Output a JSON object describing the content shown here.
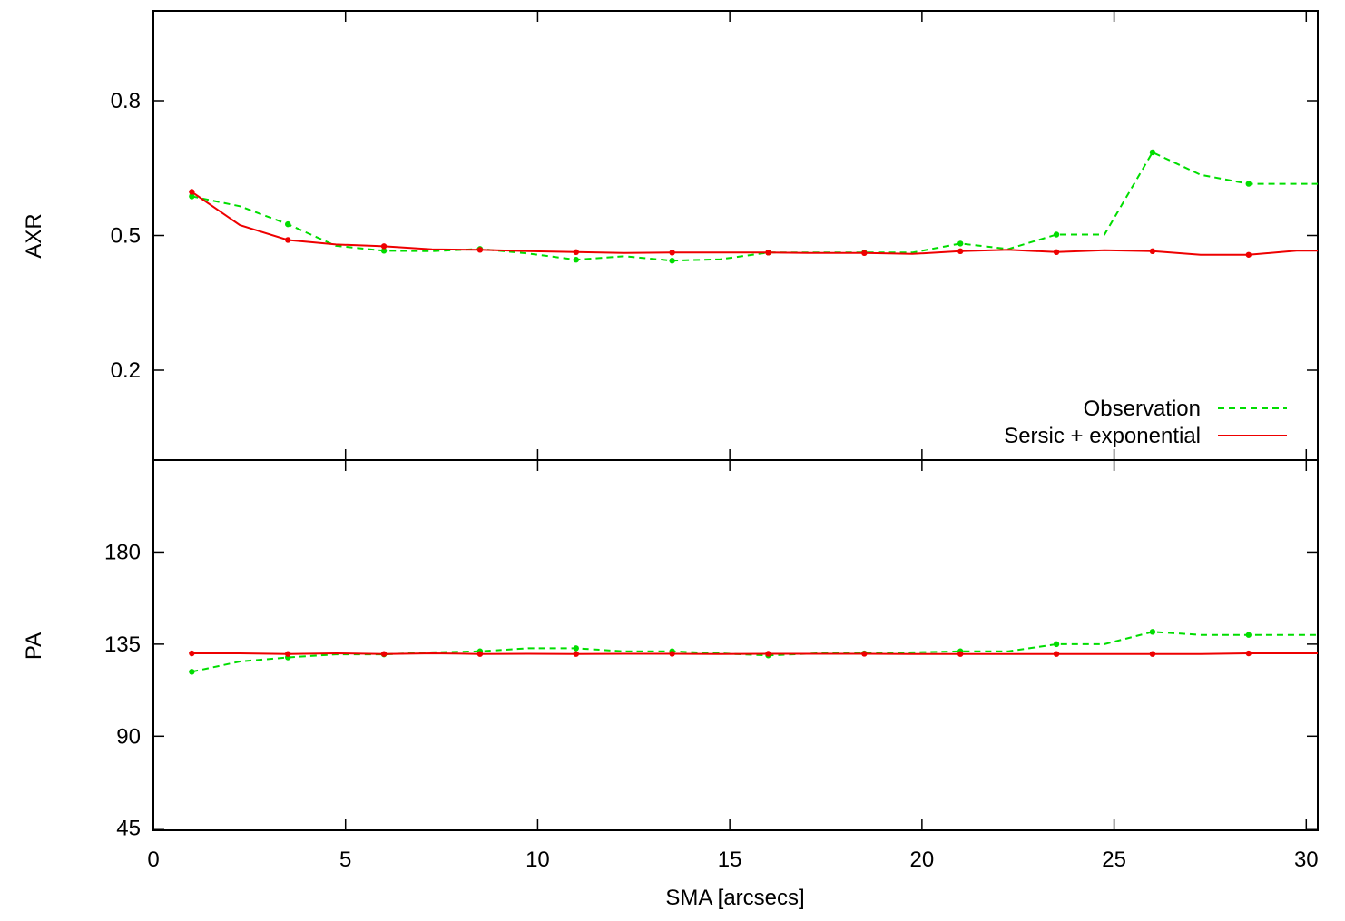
{
  "chart_data": [
    {
      "type": "line",
      "ylabel": "AXR",
      "ylim": [
        0.0,
        1.0
      ],
      "yticks": [
        0.2,
        0.5,
        0.8
      ],
      "ytick_labels": [
        "0.2",
        "0.5",
        "0.8"
      ],
      "xlim": [
        0,
        30
      ],
      "legend": {
        "placement": "bottom-right",
        "entries": [
          "Observation",
          "Sersic + exponential"
        ]
      },
      "series": [
        {
          "name": "Observation",
          "color": "#00dd00",
          "style": "dashed",
          "x": [
            1.0,
            2.25,
            3.5,
            4.75,
            6.0,
            7.25,
            8.5,
            9.75,
            11.0,
            12.25,
            13.5,
            14.75,
            16.0,
            17.25,
            18.5,
            19.75,
            21.0,
            22.25,
            23.5,
            24.75,
            26.0,
            27.25,
            28.5,
            29.75,
            30.3
          ],
          "y": [
            0.587,
            0.565,
            0.525,
            0.477,
            0.466,
            0.465,
            0.47,
            0.46,
            0.446,
            0.454,
            0.444,
            0.447,
            0.462,
            0.462,
            0.462,
            0.462,
            0.482,
            0.47,
            0.502,
            0.502,
            0.685,
            0.635,
            0.615,
            0.615,
            0.615
          ]
        },
        {
          "name": "Sersic + exponential",
          "color": "#ee0000",
          "style": "solid",
          "x": [
            1.0,
            2.25,
            3.5,
            4.75,
            6.0,
            7.25,
            8.5,
            9.75,
            11.0,
            12.25,
            13.5,
            14.75,
            16.0,
            17.25,
            18.5,
            19.75,
            21.0,
            22.25,
            23.5,
            24.75,
            26.0,
            27.25,
            28.5,
            29.75,
            30.3
          ],
          "y": [
            0.597,
            0.523,
            0.49,
            0.48,
            0.476,
            0.469,
            0.468,
            0.465,
            0.463,
            0.461,
            0.462,
            0.462,
            0.462,
            0.461,
            0.461,
            0.459,
            0.465,
            0.468,
            0.463,
            0.467,
            0.465,
            0.457,
            0.457,
            0.466,
            0.466
          ]
        }
      ]
    },
    {
      "type": "line",
      "ylabel": "PA",
      "ylim": [
        44,
        225
      ],
      "yticks": [
        45,
        90,
        135,
        180
      ],
      "ytick_labels": [
        "45",
        "90",
        "135",
        "180"
      ],
      "xlim": [
        0,
        30
      ],
      "xlabel": "SMA [arcsecs]",
      "xticks": [
        0,
        5,
        10,
        15,
        20,
        25,
        30
      ],
      "xtick_labels": [
        "0",
        "5",
        "10",
        "15",
        "20",
        "25",
        "30"
      ],
      "series": [
        {
          "name": "Observation",
          "color": "#00dd00",
          "style": "dashed",
          "x": [
            1.0,
            2.25,
            3.5,
            4.75,
            6.0,
            7.25,
            8.5,
            9.75,
            11.0,
            12.25,
            13.5,
            14.75,
            16.0,
            17.25,
            18.5,
            19.75,
            21.0,
            22.25,
            23.5,
            24.75,
            26.0,
            27.25,
            28.5,
            29.75,
            30.3
          ],
          "y": [
            121.5,
            126.5,
            128.5,
            130,
            130,
            131,
            131.5,
            133,
            133,
            131.5,
            131.5,
            130.5,
            129.5,
            130.5,
            130.5,
            131,
            131.5,
            131.5,
            135,
            135,
            141,
            139.5,
            139.5,
            139.5,
            139.5
          ]
        },
        {
          "name": "Sersic + exponential",
          "color": "#ee0000",
          "style": "solid",
          "x": [
            1.0,
            2.25,
            3.5,
            4.75,
            6.0,
            7.25,
            8.5,
            9.75,
            11.0,
            12.25,
            13.5,
            14.75,
            16.0,
            17.25,
            18.5,
            19.75,
            21.0,
            22.25,
            23.5,
            24.75,
            26.0,
            27.25,
            28.5,
            29.75,
            30.3
          ],
          "y": [
            130.5,
            130.5,
            130.2,
            130.5,
            130.2,
            130.5,
            130.2,
            130.3,
            130.2,
            130.3,
            130.3,
            130.2,
            130.3,
            130.3,
            130.3,
            130.2,
            130.2,
            130.2,
            130.2,
            130.2,
            130.2,
            130.2,
            130.5,
            130.5,
            130.5
          ]
        }
      ]
    }
  ]
}
